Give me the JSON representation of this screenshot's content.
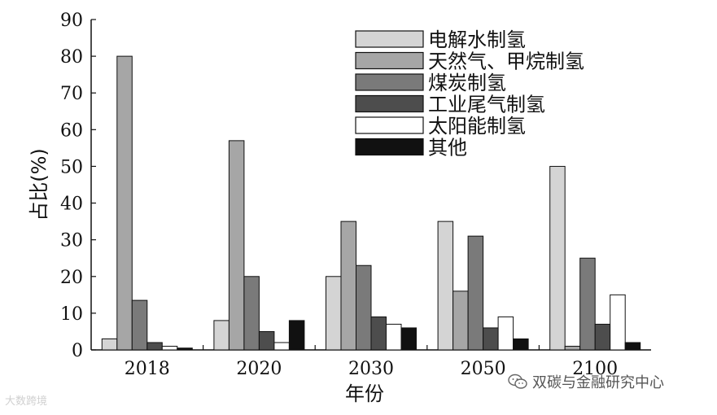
{
  "chart_data": {
    "type": "bar",
    "xlabel": "年份",
    "ylabel": "占比(%)",
    "ylim": [
      0,
      90
    ],
    "yticks": [
      0,
      10,
      20,
      30,
      40,
      50,
      60,
      70,
      80,
      90
    ],
    "categories": [
      "2018",
      "2020",
      "2030",
      "2050",
      "2100"
    ],
    "legend_position": "top-right",
    "grid": false,
    "series": [
      {
        "name": "电解水制氢",
        "color": "#d4d4d4",
        "values": [
          3,
          8,
          20,
          35,
          50
        ]
      },
      {
        "name": "天然气、甲烷制氢",
        "color": "#a6a6a6",
        "values": [
          80,
          57,
          35,
          16,
          1
        ]
      },
      {
        "name": "煤炭制氢",
        "color": "#7a7a7a",
        "values": [
          13.5,
          20,
          23,
          31,
          25
        ]
      },
      {
        "name": "工业尾气制氢",
        "color": "#4d4d4d",
        "values": [
          2,
          5,
          9,
          6,
          7
        ]
      },
      {
        "name": "太阳能制氢",
        "color": "#ffffff",
        "values": [
          1,
          2,
          7,
          9,
          15
        ]
      },
      {
        "name": "其他",
        "color": "#111111",
        "values": [
          0.5,
          8,
          6,
          3,
          2
        ]
      }
    ]
  },
  "watermarks": {
    "left": "大数跨境",
    "right": "双碳与金融研究中心",
    "right_icon": "wechat-icon"
  }
}
